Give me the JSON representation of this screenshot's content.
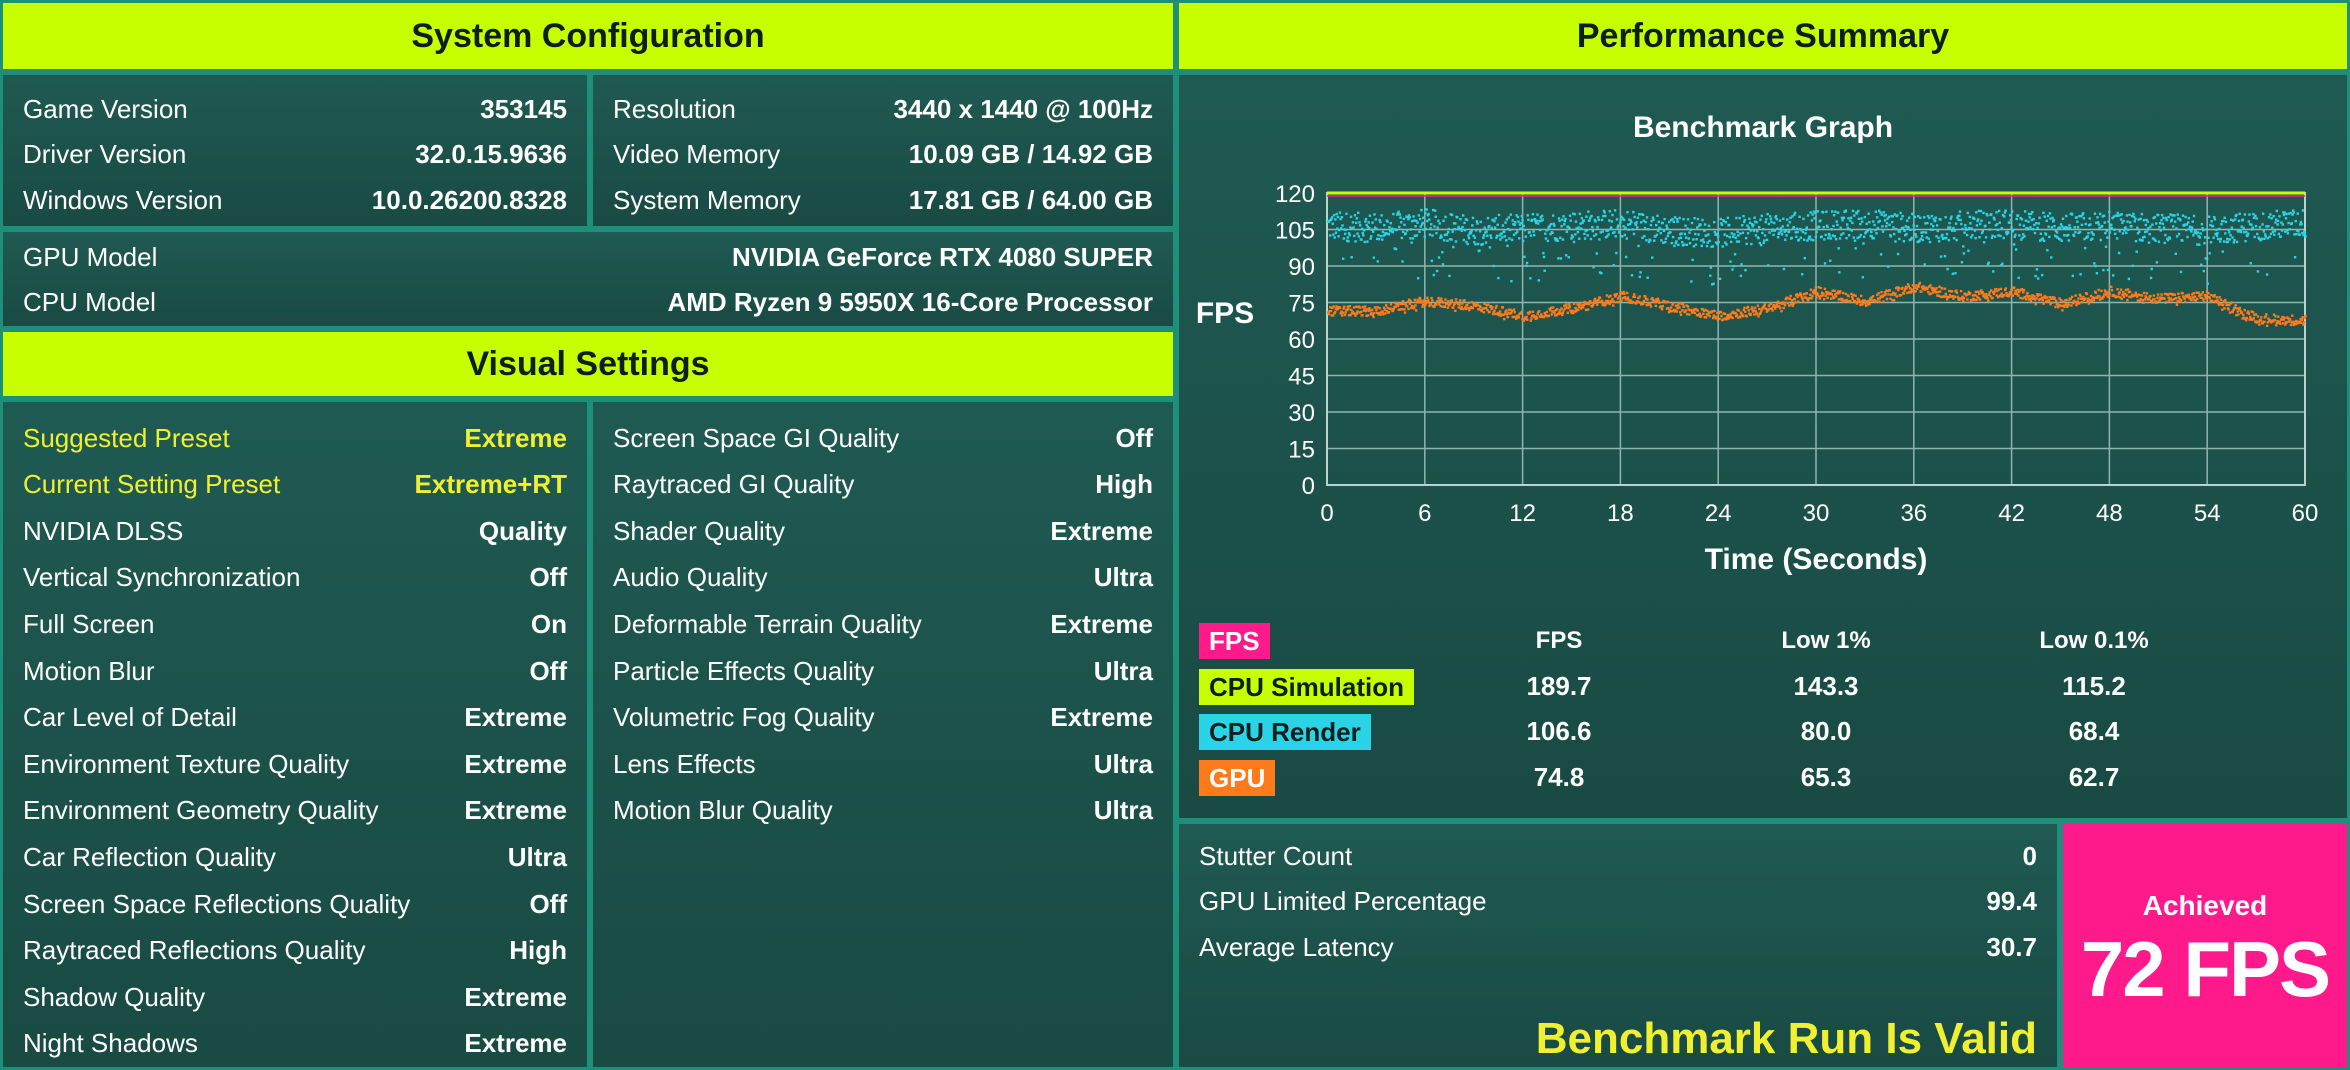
{
  "colors": {
    "accent": "#c8ff00",
    "panel_bg": "#1c4a44",
    "border": "#1e8f78",
    "highlight_text": "#f0f030",
    "fps": "#ff1a8c",
    "cpu_simulation": "#c8ff00",
    "cpu_render": "#2ad4e6",
    "gpu": "#ff7a1a"
  },
  "system_config": {
    "title": "System Configuration",
    "left": [
      {
        "label": "Game Version",
        "value": "353145"
      },
      {
        "label": "Driver Version",
        "value": "32.0.15.9636"
      },
      {
        "label": "Windows Version",
        "value": "10.0.26200.8328"
      }
    ],
    "right": [
      {
        "label": "Resolution",
        "value": "3440 x 1440 @ 100Hz"
      },
      {
        "label": "Video Memory",
        "value": "10.09 GB / 14.92 GB"
      },
      {
        "label": "System Memory",
        "value": "17.81 GB / 64.00 GB"
      }
    ],
    "hardware": [
      {
        "label": "GPU Model",
        "value": "NVIDIA GeForce RTX 4080 SUPER"
      },
      {
        "label": "CPU Model",
        "value": "AMD Ryzen 9 5950X 16-Core Processor"
      }
    ]
  },
  "visual_settings": {
    "title": "Visual Settings",
    "left": [
      {
        "label": "Suggested Preset",
        "value": "Extreme",
        "highlight": true
      },
      {
        "label": "Current Setting Preset",
        "value": "Extreme+RT",
        "highlight": true
      },
      {
        "label": "NVIDIA DLSS",
        "value": "Quality"
      },
      {
        "label": "Vertical Synchronization",
        "value": "Off"
      },
      {
        "label": "Full Screen",
        "value": "On"
      },
      {
        "label": "Motion Blur",
        "value": "Off"
      },
      {
        "label": "Car Level of Detail",
        "value": "Extreme"
      },
      {
        "label": "Environment Texture Quality",
        "value": "Extreme"
      },
      {
        "label": "Environment Geometry Quality",
        "value": "Extreme"
      },
      {
        "label": "Car Reflection Quality",
        "value": "Ultra"
      },
      {
        "label": "Screen Space Reflections Quality",
        "value": "Off"
      },
      {
        "label": "Raytraced Reflections Quality",
        "value": "High"
      },
      {
        "label": "Shadow Quality",
        "value": "Extreme"
      },
      {
        "label": "Night Shadows",
        "value": "Extreme"
      }
    ],
    "right": [
      {
        "label": "Screen Space GI Quality",
        "value": "Off"
      },
      {
        "label": "Raytraced GI Quality",
        "value": "High"
      },
      {
        "label": "Shader Quality",
        "value": "Extreme"
      },
      {
        "label": "Audio Quality",
        "value": "Ultra"
      },
      {
        "label": "Deformable Terrain Quality",
        "value": "Extreme"
      },
      {
        "label": "Particle Effects Quality",
        "value": "Ultra"
      },
      {
        "label": "Volumetric Fog Quality",
        "value": "Extreme"
      },
      {
        "label": "Lens Effects",
        "value": "Ultra"
      },
      {
        "label": "Motion Blur Quality",
        "value": "Ultra"
      }
    ]
  },
  "performance": {
    "title": "Performance Summary",
    "graph_title": "Benchmark Graph",
    "stats_headers": [
      "FPS",
      "Low 1%",
      "Low 0.1%"
    ],
    "stats": [
      {
        "label": "FPS",
        "color": "#ff1a8c",
        "text_color": "#ffffff",
        "values": [
          "",
          "",
          ""
        ]
      },
      {
        "label": "CPU Simulation",
        "color": "#c8ff00",
        "text_color": "#0d1f1c",
        "values": [
          "189.7",
          "143.3",
          "115.2"
        ]
      },
      {
        "label": "CPU Render",
        "color": "#2ad4e6",
        "text_color": "#0d1f1c",
        "values": [
          "106.6",
          "80.0",
          "68.4"
        ]
      },
      {
        "label": "GPU",
        "color": "#ff7a1a",
        "text_color": "#ffffff",
        "values": [
          "74.8",
          "65.3",
          "62.7"
        ]
      }
    ],
    "summary": [
      {
        "label": "Stutter Count",
        "value": "0"
      },
      {
        "label": "GPU Limited Percentage",
        "value": "99.4"
      },
      {
        "label": "Average Latency",
        "value": "30.7"
      }
    ],
    "valid_text": "Benchmark Run Is Valid",
    "achieved_label": "Achieved",
    "achieved_value": "72 FPS"
  },
  "chart_data": {
    "type": "scatter",
    "title": "Benchmark Graph",
    "xlabel": "Time (Seconds)",
    "ylabel": "FPS",
    "xlim": [
      0,
      60
    ],
    "ylim": [
      0,
      120
    ],
    "xticks": [
      0,
      6,
      12,
      18,
      24,
      30,
      36,
      42,
      48,
      54,
      60
    ],
    "yticks": [
      0,
      15,
      30,
      45,
      60,
      75,
      90,
      105,
      120
    ],
    "grid": true,
    "series": [
      {
        "name": "CPU Simulation",
        "color": "#c8ff00",
        "style": "line",
        "x": [
          0,
          60
        ],
        "y": [
          120,
          120
        ]
      },
      {
        "name": "CPU Render",
        "color": "#2ad4e6",
        "style": "scatter",
        "x": [
          0,
          3,
          6,
          9,
          12,
          15,
          18,
          21,
          24,
          27,
          30,
          33,
          36,
          39,
          42,
          45,
          48,
          51,
          54,
          57,
          60
        ],
        "y": [
          107,
          106,
          108,
          105,
          106,
          107,
          108,
          105,
          104,
          106,
          107,
          108,
          106,
          107,
          108,
          106,
          107,
          106,
          105,
          107,
          108
        ],
        "spread": [
          6,
          14
        ]
      },
      {
        "name": "GPU",
        "color": "#ff7a1a",
        "style": "scatter",
        "x": [
          0,
          3,
          6,
          9,
          12,
          15,
          18,
          21,
          24,
          27,
          30,
          33,
          36,
          39,
          42,
          45,
          48,
          51,
          54,
          57,
          60
        ],
        "y": [
          72,
          72,
          76,
          74,
          70,
          73,
          78,
          74,
          70,
          73,
          80,
          76,
          82,
          78,
          80,
          75,
          80,
          77,
          78,
          69,
          68
        ],
        "spread": [
          2,
          3
        ]
      }
    ]
  }
}
